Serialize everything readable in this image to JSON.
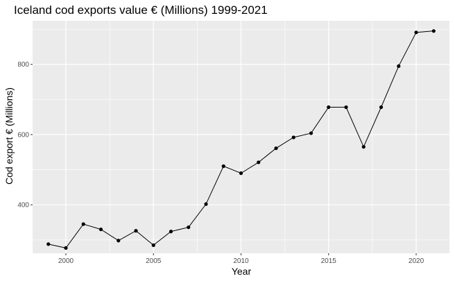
{
  "chart_data": {
    "type": "line",
    "title": "Iceland cod exports value € (Millions) 1999-2021",
    "xlabel": "Year",
    "ylabel": "Cod export € (Millions)",
    "x_ticks": [
      "2000",
      "2005",
      "2010",
      "2015",
      "2020"
    ],
    "y_ticks": [
      "400",
      "600",
      "800"
    ],
    "xlim": [
      1998.1,
      2021.9
    ],
    "ylim": [
      262,
      924
    ],
    "grid": true,
    "legend": "none",
    "colors": {
      "panel": "#ebebeb",
      "grid": "#ffffff",
      "line": "#000000",
      "point": "#000000"
    },
    "series": [
      {
        "x": [
          1999,
          2000,
          2001,
          2002,
          2003,
          2004,
          2005,
          2006,
          2007,
          2008,
          2009,
          2010,
          2011,
          2012,
          2013,
          2014,
          2015,
          2016,
          2017,
          2018,
          2019,
          2020,
          2021
        ],
        "values": [
          288,
          277,
          345,
          330,
          298,
          326,
          285,
          324,
          336,
          402,
          510,
          490,
          521,
          561,
          592,
          604,
          678,
          678,
          565,
          678,
          795,
          891,
          895
        ]
      }
    ]
  }
}
